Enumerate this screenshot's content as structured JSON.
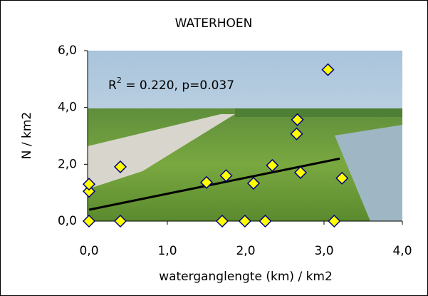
{
  "chart_data": {
    "type": "scatter",
    "title": "WATERHOEN",
    "xlabel": "waterganglengte (km) / km2",
    "ylabel": "N / km2",
    "annotation": {
      "base": "R",
      "sup": "2",
      "rest": " = 0.220, p=0.037"
    },
    "xlim": [
      0,
      4
    ],
    "ylim": [
      0,
      6
    ],
    "xticks": [
      {
        "value": 0,
        "label": "0,0"
      },
      {
        "value": 1,
        "label": "1,0"
      },
      {
        "value": 2,
        "label": "2,0"
      },
      {
        "value": 3,
        "label": "3,0"
      },
      {
        "value": 4,
        "label": "4,0"
      }
    ],
    "yticks": [
      {
        "value": 0,
        "label": "0,0"
      },
      {
        "value": 2,
        "label": "2,0"
      },
      {
        "value": 4,
        "label": "4,0"
      },
      {
        "value": 6,
        "label": "6,0"
      }
    ],
    "series": [
      {
        "color": "#ffff00",
        "edgecolor": "#000080",
        "x": [
          0.0,
          0.0,
          0.0,
          0.4,
          0.4,
          1.5,
          1.75,
          1.7,
          1.99,
          2.1,
          2.25,
          2.34,
          2.65,
          2.66,
          2.7,
          3.05,
          3.13,
          3.23
        ],
        "values": [
          0.0,
          1.05,
          1.3,
          1.91,
          0.0,
          1.36,
          1.6,
          0.0,
          0.0,
          1.33,
          0.0,
          1.96,
          3.07,
          3.57,
          1.71,
          5.33,
          0.0,
          1.51
        ]
      }
    ],
    "trendline": {
      "color": "#000000",
      "x": [
        0,
        3.2
      ],
      "values": [
        0.4,
        2.2
      ]
    }
  }
}
